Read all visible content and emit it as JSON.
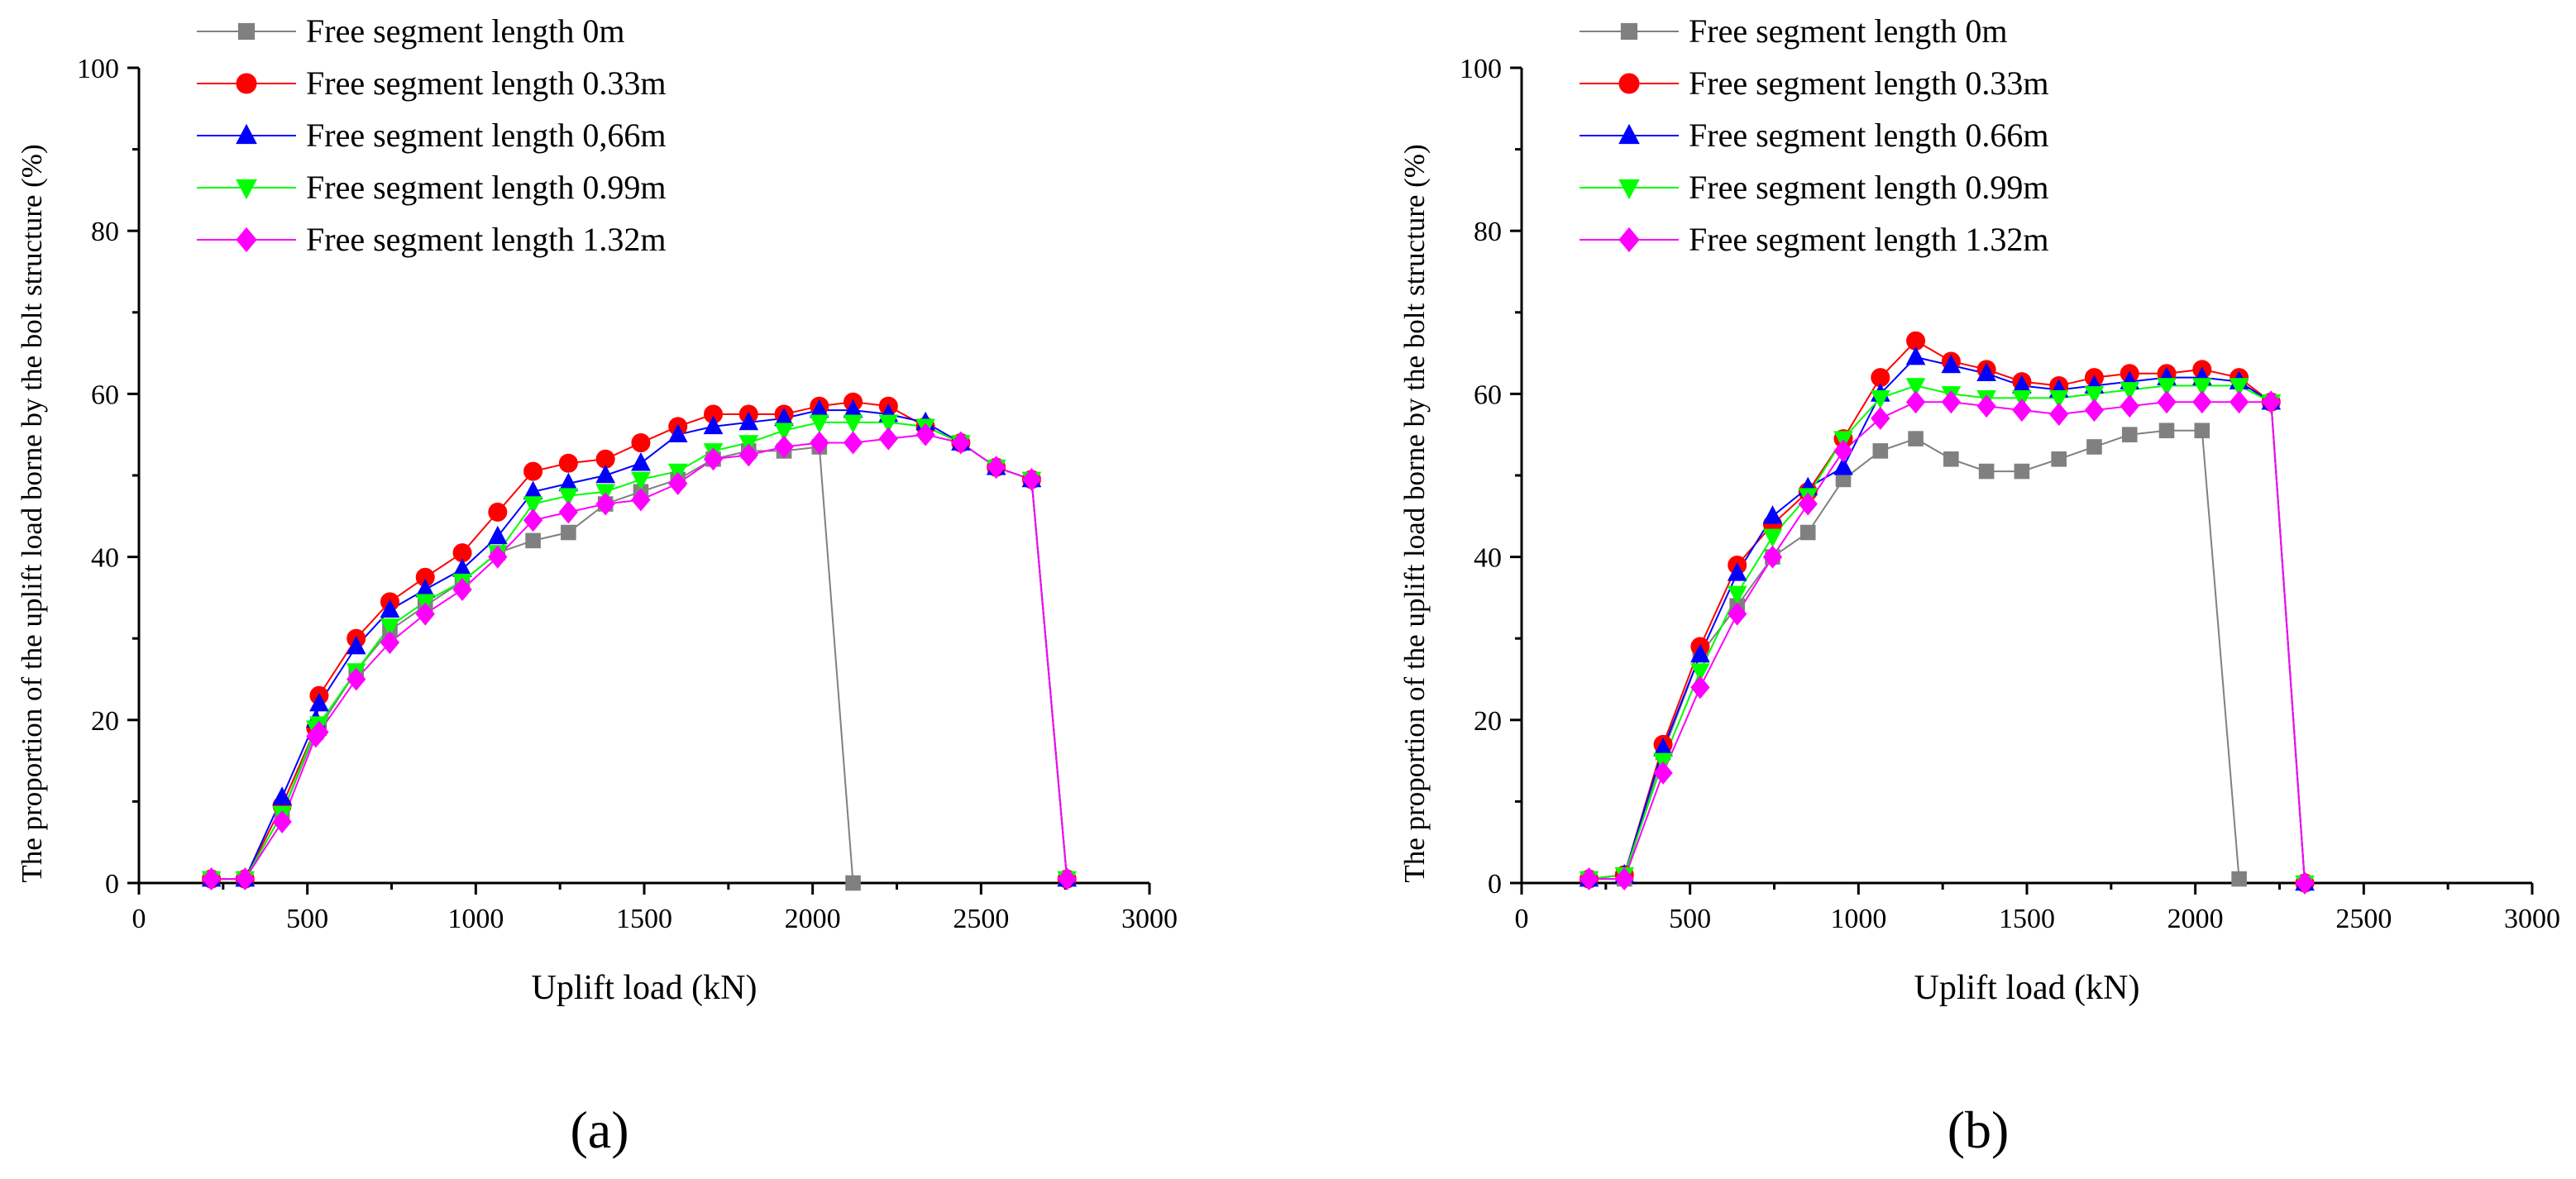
{
  "chart_data": [
    {
      "type": "line",
      "panel_label": "(a)",
      "xlabel": "Uplift load (kN)",
      "ylabel": "The proportion of the uplift load borne by the bolt structure (%)",
      "xlim": [
        0,
        3000
      ],
      "ylim": [
        0,
        100
      ],
      "xticks": [
        0,
        500,
        1000,
        1500,
        2000,
        2500,
        3000
      ],
      "yticks": [
        0,
        20,
        40,
        60,
        80,
        100
      ],
      "legend_position": "top-left",
      "series": [
        {
          "name": "Free segment length 0m",
          "color": "#808080",
          "marker": "square",
          "x": [
            215,
            315,
            425,
            525,
            535,
            645,
            745,
            850,
            960,
            1065,
            1170,
            1275,
            1385,
            1490,
            1600,
            1705,
            1810,
            1915,
            2020,
            2120
          ],
          "y": [
            0.5,
            0.5,
            8.5,
            18.5,
            19,
            26,
            31,
            34,
            37,
            40.5,
            42,
            43,
            46.5,
            48,
            49.5,
            52,
            53,
            53,
            53.5,
            0
          ]
        },
        {
          "name": "Free segment length 0.33m",
          "color": "#ff0000",
          "marker": "circle",
          "x": [
            215,
            315,
            425,
            525,
            535,
            645,
            745,
            850,
            960,
            1065,
            1170,
            1275,
            1385,
            1490,
            1600,
            1705,
            1810,
            1915,
            2020,
            2120,
            2225,
            2335,
            2440,
            2545,
            2650,
            2755
          ],
          "y": [
            0.5,
            0.5,
            9.5,
            19,
            23,
            30,
            34.5,
            37.5,
            40.5,
            45.5,
            50.5,
            51.5,
            52,
            54,
            56,
            57.5,
            57.5,
            57.5,
            58.5,
            59,
            58.5,
            56,
            54,
            51,
            49.5,
            0.5
          ]
        },
        {
          "name": "Free segment length 0,66m",
          "color": "#0000ff",
          "marker": "triangle-up",
          "x": [
            215,
            315,
            425,
            525,
            535,
            645,
            745,
            850,
            960,
            1065,
            1170,
            1275,
            1385,
            1490,
            1600,
            1705,
            1810,
            1915,
            2020,
            2120,
            2225,
            2335,
            2440,
            2545,
            2650,
            2755
          ],
          "y": [
            0.5,
            0.5,
            10.5,
            20,
            22,
            29,
            33.5,
            36,
            38.5,
            42.5,
            48,
            49,
            50,
            51.5,
            55,
            56,
            56.5,
            57,
            58,
            58,
            57.5,
            56.5,
            54,
            51,
            49.5,
            0.5
          ]
        },
        {
          "name": "Free segment length 0.99m",
          "color": "#00ff00",
          "marker": "triangle-down",
          "x": [
            215,
            315,
            425,
            525,
            535,
            645,
            745,
            850,
            960,
            1065,
            1170,
            1275,
            1385,
            1490,
            1600,
            1705,
            1810,
            1915,
            2020,
            2120,
            2225,
            2335,
            2440,
            2545,
            2650,
            2755
          ],
          "y": [
            0.5,
            0.5,
            8.5,
            19,
            19.5,
            26,
            31.5,
            34.5,
            37,
            40.5,
            46.5,
            47.5,
            48,
            49.5,
            50.5,
            53,
            54,
            55.5,
            56.5,
            56.5,
            56.5,
            56,
            54,
            51,
            49.5,
            0.5
          ]
        },
        {
          "name": "Free segment length 1.32m",
          "color": "#ff00ff",
          "marker": "diamond",
          "x": [
            215,
            315,
            425,
            525,
            535,
            645,
            745,
            850,
            960,
            1065,
            1170,
            1275,
            1385,
            1490,
            1600,
            1705,
            1810,
            1915,
            2020,
            2120,
            2225,
            2335,
            2440,
            2545,
            2650,
            2755
          ],
          "y": [
            0.5,
            0.5,
            7.5,
            18,
            18.5,
            25,
            29.5,
            33,
            36,
            40,
            44.5,
            45.5,
            46.5,
            47,
            49,
            52,
            52.5,
            53.5,
            54,
            54,
            54.5,
            55,
            54,
            51,
            49.5,
            0.5
          ]
        }
      ]
    },
    {
      "type": "line",
      "panel_label": "(b)",
      "xlabel": "Uplift load (kN)",
      "ylabel": "The proportion of the uplift load borne by the bolt structure (%)",
      "xlim": [
        0,
        3000
      ],
      "ylim": [
        0,
        100
      ],
      "xticks": [
        0,
        500,
        1000,
        1500,
        2000,
        2500,
        3000
      ],
      "yticks": [
        0,
        20,
        40,
        60,
        80,
        100
      ],
      "legend_position": "top-left",
      "series": [
        {
          "name": "Free segment length 0m",
          "color": "#808080",
          "marker": "square",
          "x": [
            200,
            305,
            420,
            530,
            640,
            745,
            850,
            955,
            1065,
            1170,
            1275,
            1380,
            1485,
            1595,
            1700,
            1805,
            1915,
            2020,
            2130
          ],
          "y": [
            0.5,
            0.5,
            16,
            28,
            34,
            40,
            43,
            49.5,
            53,
            54.5,
            52,
            50.5,
            50.5,
            52,
            53.5,
            55,
            55.5,
            55.5,
            0.5
          ]
        },
        {
          "name": "Free segment length 0.33m",
          "color": "#ff0000",
          "marker": "circle",
          "x": [
            200,
            305,
            420,
            530,
            640,
            745,
            850,
            955,
            1065,
            1170,
            1275,
            1380,
            1485,
            1595,
            1700,
            1805,
            1915,
            2020,
            2130,
            2225,
            2325
          ],
          "y": [
            0.5,
            1,
            17,
            29,
            39,
            44,
            48,
            54.5,
            62,
            66.5,
            64,
            63,
            61.5,
            61,
            62,
            62.5,
            62.5,
            63,
            62,
            59,
            0
          ]
        },
        {
          "name": "Free segment length 0.66m",
          "color": "#0000ff",
          "marker": "triangle-up",
          "x": [
            200,
            305,
            420,
            530,
            640,
            745,
            850,
            955,
            1065,
            1170,
            1275,
            1380,
            1485,
            1595,
            1700,
            1805,
            1915,
            2020,
            2130,
            2225,
            2325
          ],
          "y": [
            0.5,
            1,
            16.5,
            28,
            38,
            45,
            48.5,
            51,
            60,
            64.5,
            63.5,
            62.5,
            61,
            60.5,
            61,
            61.5,
            62,
            62,
            61.5,
            59,
            0
          ]
        },
        {
          "name": "Free segment length 0.99m",
          "color": "#00ff00",
          "marker": "triangle-down",
          "x": [
            200,
            305,
            420,
            530,
            640,
            745,
            850,
            955,
            1065,
            1170,
            1275,
            1380,
            1485,
            1595,
            1700,
            1805,
            1915,
            2020,
            2130,
            2225,
            2325
          ],
          "y": [
            0.5,
            1,
            15,
            26,
            35.5,
            42.5,
            47.5,
            54.5,
            59.5,
            61,
            60,
            59.5,
            59.5,
            59.5,
            60,
            60.5,
            61,
            61,
            61,
            59,
            0
          ]
        },
        {
          "name": "Free segment length 1.32m",
          "color": "#ff00ff",
          "marker": "diamond",
          "x": [
            200,
            305,
            420,
            530,
            640,
            745,
            850,
            955,
            1065,
            1170,
            1275,
            1380,
            1485,
            1595,
            1700,
            1805,
            1915,
            2020,
            2130,
            2225,
            2325
          ],
          "y": [
            0.5,
            0.5,
            13.5,
            24,
            33,
            40,
            46.5,
            53,
            57,
            59,
            59,
            58.5,
            58,
            57.5,
            58,
            58.5,
            59,
            59,
            59,
            59,
            0
          ]
        }
      ]
    }
  ]
}
